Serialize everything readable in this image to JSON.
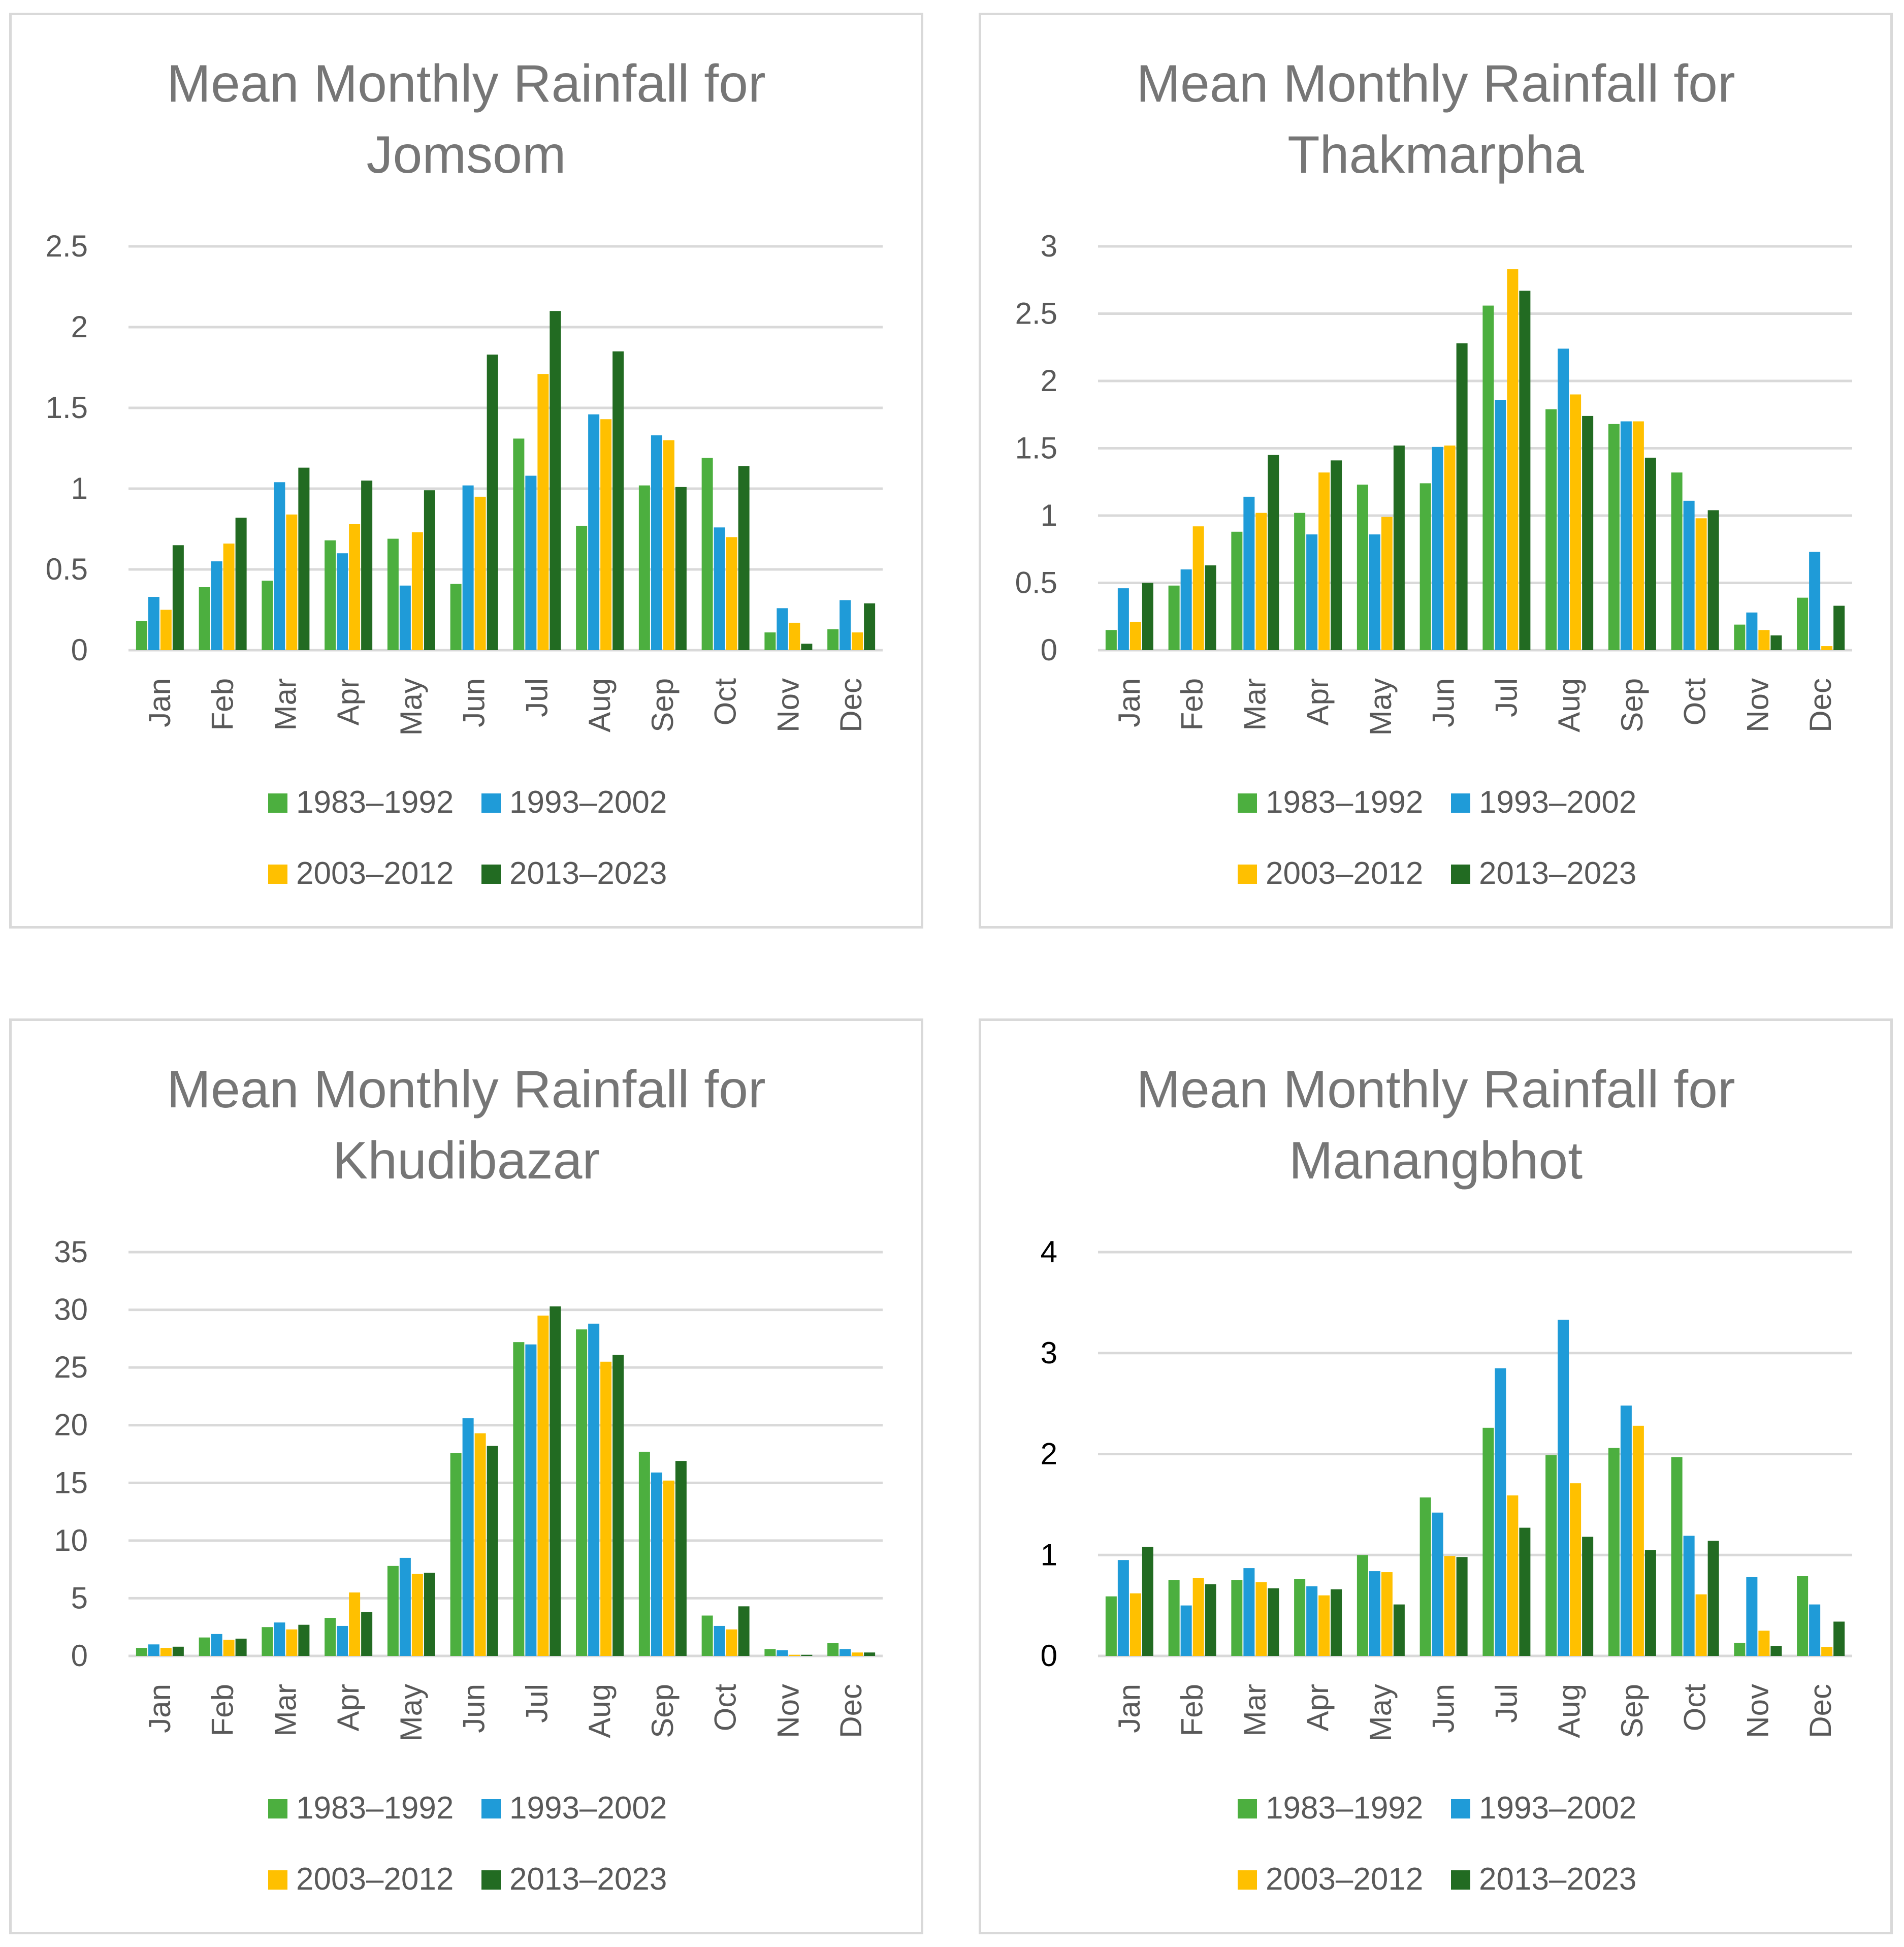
{
  "colors": {
    "s1": "#4caf3f",
    "s2": "#1f9bd8",
    "s3": "#ffc000",
    "s4": "#226b22"
  },
  "chart_data": [
    {
      "type": "bar",
      "title_line1": "Mean Monthly Rainfall for",
      "title_line2": "Jomsom",
      "categories": [
        "Jan",
        "Feb",
        "Mar",
        "Apr",
        "May",
        "Jun",
        "Jul",
        "Aug",
        "Sep",
        "Oct",
        "Nov",
        "Dec"
      ],
      "ylim": [
        0,
        2.5
      ],
      "yticks": [
        0,
        0.5,
        1,
        1.5,
        2,
        2.5
      ],
      "ytick_labels": [
        "0",
        "0.5",
        "1",
        "1.5",
        "2",
        "2.5"
      ],
      "series": [
        {
          "name": "1983–1992",
          "values": [
            0.18,
            0.39,
            0.43,
            0.68,
            0.69,
            0.41,
            1.31,
            0.77,
            1.02,
            1.19,
            0.11,
            0.13
          ]
        },
        {
          "name": "1993–2002",
          "values": [
            0.33,
            0.55,
            1.04,
            0.6,
            0.4,
            1.02,
            1.08,
            1.46,
            1.33,
            0.76,
            0.26,
            0.31
          ]
        },
        {
          "name": "2003–2012",
          "values": [
            0.25,
            0.66,
            0.84,
            0.78,
            0.73,
            0.95,
            1.71,
            1.43,
            1.3,
            0.7,
            0.17,
            0.11
          ]
        },
        {
          "name": "2013–2023",
          "values": [
            0.65,
            0.82,
            1.13,
            1.05,
            0.99,
            1.83,
            2.1,
            1.85,
            1.01,
            1.14,
            0.04,
            0.29
          ]
        }
      ]
    },
    {
      "type": "bar",
      "title_line1": "Mean Monthly Rainfall for",
      "title_line2": "Thakmarpha",
      "categories": [
        "Jan",
        "Feb",
        "Mar",
        "Apr",
        "May",
        "Jun",
        "Jul",
        "Aug",
        "Sep",
        "Oct",
        "Nov",
        "Dec"
      ],
      "ylim": [
        0,
        3
      ],
      "yticks": [
        0,
        0.5,
        1,
        1.5,
        2,
        2.5,
        3
      ],
      "ytick_labels": [
        "0",
        "0.5",
        "1",
        "1.5",
        "2",
        "2.5",
        "3"
      ],
      "series": [
        {
          "name": "1983–1992",
          "values": [
            0.15,
            0.48,
            0.88,
            1.02,
            1.23,
            1.24,
            2.56,
            1.79,
            1.68,
            1.32,
            0.19,
            0.39
          ]
        },
        {
          "name": "1993–2002",
          "values": [
            0.46,
            0.6,
            1.14,
            0.86,
            0.86,
            1.51,
            1.86,
            2.24,
            1.7,
            1.11,
            0.28,
            0.73
          ]
        },
        {
          "name": "2003–2012",
          "values": [
            0.21,
            0.92,
            1.02,
            1.32,
            0.99,
            1.52,
            2.83,
            1.9,
            1.7,
            0.98,
            0.15,
            0.03
          ]
        },
        {
          "name": "2013–2023",
          "values": [
            0.5,
            0.63,
            1.45,
            1.41,
            1.52,
            2.28,
            2.67,
            1.74,
            1.43,
            1.04,
            0.11,
            0.33
          ]
        }
      ]
    },
    {
      "type": "bar",
      "title_line1": "Mean Monthly Rainfall for",
      "title_line2": "Khudibazar",
      "categories": [
        "Jan",
        "Feb",
        "Mar",
        "Apr",
        "May",
        "Jun",
        "Jul",
        "Aug",
        "Sep",
        "Oct",
        "Nov",
        "Dec"
      ],
      "ylim": [
        0,
        35
      ],
      "yticks": [
        0,
        5,
        10,
        15,
        20,
        25,
        30,
        35
      ],
      "ytick_labels": [
        "0",
        "5",
        "10",
        "15",
        "20",
        "25",
        "30",
        "35"
      ],
      "series": [
        {
          "name": "1983–1992",
          "values": [
            0.7,
            1.6,
            2.5,
            3.3,
            7.8,
            17.6,
            27.2,
            28.3,
            17.7,
            3.5,
            0.6,
            1.1
          ]
        },
        {
          "name": "1993–2002",
          "values": [
            1.0,
            1.9,
            2.9,
            2.6,
            8.5,
            20.6,
            27.0,
            28.8,
            15.9,
            2.6,
            0.5,
            0.6
          ]
        },
        {
          "name": "2003–2012",
          "values": [
            0.7,
            1.4,
            2.3,
            5.5,
            7.1,
            19.3,
            29.5,
            25.5,
            15.2,
            2.3,
            0.1,
            0.3
          ]
        },
        {
          "name": "2013–2023",
          "values": [
            0.8,
            1.5,
            2.7,
            3.8,
            7.2,
            18.2,
            30.3,
            26.1,
            16.9,
            4.3,
            0.1,
            0.3
          ]
        }
      ]
    },
    {
      "type": "bar",
      "title_line1": "Mean Monthly Rainfall for",
      "title_line2": "Manangbhot",
      "categories": [
        "Jan",
        "Feb",
        "Mar",
        "Apr",
        "May",
        "Jun",
        "Jul",
        "Aug",
        "Sep",
        "Oct",
        "Nov",
        "Dec"
      ],
      "ylim": [
        0,
        4
      ],
      "yticks": [
        0,
        1,
        2,
        3,
        4
      ],
      "ytick_labels": [
        "0",
        "1",
        "2",
        "3",
        "4"
      ],
      "series": [
        {
          "name": "1983–1992",
          "values": [
            0.59,
            0.75,
            0.75,
            0.76,
            1.0,
            1.57,
            2.26,
            1.99,
            2.06,
            1.97,
            0.13,
            0.79
          ]
        },
        {
          "name": "1993–2002",
          "values": [
            0.95,
            0.5,
            0.87,
            0.69,
            0.84,
            1.42,
            2.85,
            3.33,
            2.48,
            1.19,
            0.78,
            0.51
          ]
        },
        {
          "name": "2003–2012",
          "values": [
            0.62,
            0.77,
            0.73,
            0.6,
            0.83,
            0.99,
            1.59,
            1.71,
            2.28,
            0.61,
            0.25,
            0.09
          ]
        },
        {
          "name": "2013–2023",
          "values": [
            1.08,
            0.71,
            0.67,
            0.66,
            0.51,
            0.98,
            1.27,
            1.18,
            1.05,
            1.14,
            0.1,
            0.34
          ]
        }
      ]
    }
  ]
}
